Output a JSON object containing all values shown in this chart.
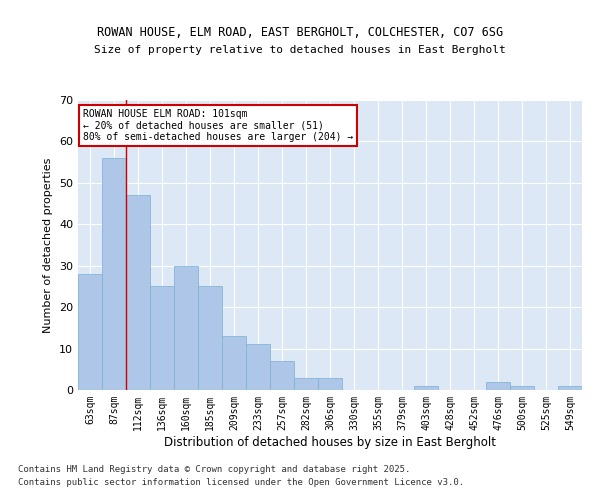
{
  "title1": "ROWAN HOUSE, ELM ROAD, EAST BERGHOLT, COLCHESTER, CO7 6SG",
  "title2": "Size of property relative to detached houses in East Bergholt",
  "xlabel": "Distribution of detached houses by size in East Bergholt",
  "ylabel": "Number of detached properties",
  "categories": [
    "63sqm",
    "87sqm",
    "112sqm",
    "136sqm",
    "160sqm",
    "185sqm",
    "209sqm",
    "233sqm",
    "257sqm",
    "282sqm",
    "306sqm",
    "330sqm",
    "355sqm",
    "379sqm",
    "403sqm",
    "428sqm",
    "452sqm",
    "476sqm",
    "500sqm",
    "525sqm",
    "549sqm"
  ],
  "values": [
    28,
    56,
    47,
    25,
    30,
    25,
    13,
    11,
    7,
    3,
    3,
    0,
    0,
    0,
    1,
    0,
    0,
    2,
    1,
    0,
    1
  ],
  "bar_color": "#aec6e8",
  "bar_edge_color": "#7aafd4",
  "annotation_text": "ROWAN HOUSE ELM ROAD: 101sqm\n← 20% of detached houses are smaller (51)\n80% of semi-detached houses are larger (204) →",
  "annotation_box_color": "#ffffff",
  "annotation_box_edge": "#cc0000",
  "vline_x": 1.5,
  "vline_color": "#cc0000",
  "ylim": [
    0,
    70
  ],
  "yticks": [
    0,
    10,
    20,
    30,
    40,
    50,
    60,
    70
  ],
  "background_color": "#dce8f5",
  "grid_color": "#ffffff",
  "fig_facecolor": "#ffffff",
  "footer1": "Contains HM Land Registry data © Crown copyright and database right 2025.",
  "footer2": "Contains public sector information licensed under the Open Government Licence v3.0."
}
